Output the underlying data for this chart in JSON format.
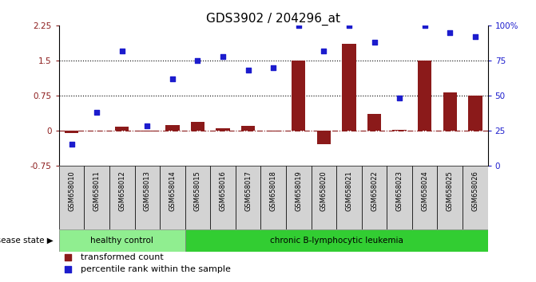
{
  "title": "GDS3902 / 204296_at",
  "samples": [
    "GSM658010",
    "GSM658011",
    "GSM658012",
    "GSM658013",
    "GSM658014",
    "GSM658015",
    "GSM658016",
    "GSM658017",
    "GSM658018",
    "GSM658019",
    "GSM658020",
    "GSM658021",
    "GSM658022",
    "GSM658023",
    "GSM658024",
    "GSM658025",
    "GSM658026"
  ],
  "transformed_count": [
    -0.05,
    0.0,
    0.08,
    -0.02,
    0.12,
    0.18,
    0.05,
    0.1,
    -0.02,
    1.5,
    -0.3,
    1.85,
    0.35,
    0.02,
    1.5,
    0.82,
    0.75
  ],
  "percentile_rank": [
    15,
    38,
    82,
    28,
    62,
    75,
    78,
    68,
    70,
    100,
    82,
    100,
    88,
    48,
    100,
    95,
    92
  ],
  "healthy_control_count": 5,
  "leukemia_count": 12,
  "bar_color": "#8B1A1A",
  "dot_color": "#1C1CCD",
  "ylim_left": [
    -0.75,
    2.25
  ],
  "yticks_left": [
    -0.75,
    0.0,
    0.75,
    1.5,
    2.25
  ],
  "ytick_labels_left": [
    "-0.75",
    "0",
    "0.75",
    "1.5",
    "2.25"
  ],
  "ylim_right": [
    0,
    100
  ],
  "yticks_right": [
    0,
    25,
    50,
    75,
    100
  ],
  "ytick_labels_right": [
    "0",
    "25",
    "50",
    "75",
    "100%"
  ],
  "hlines": [
    0.75,
    1.5
  ],
  "healthy_label": "healthy control",
  "leukemia_label": "chronic B-lymphocytic leukemia",
  "healthy_color": "#90EE90",
  "leukemia_color": "#32CD32",
  "disease_state_label": "disease state",
  "legend_bar_label": "transformed count",
  "legend_dot_label": "percentile rank within the sample",
  "background_color": "#FFFFFF",
  "cell_bg_color": "#D3D3D3",
  "title_fontsize": 11,
  "axis_fontsize": 7.5,
  "sample_fontsize": 6,
  "legend_fontsize": 8
}
